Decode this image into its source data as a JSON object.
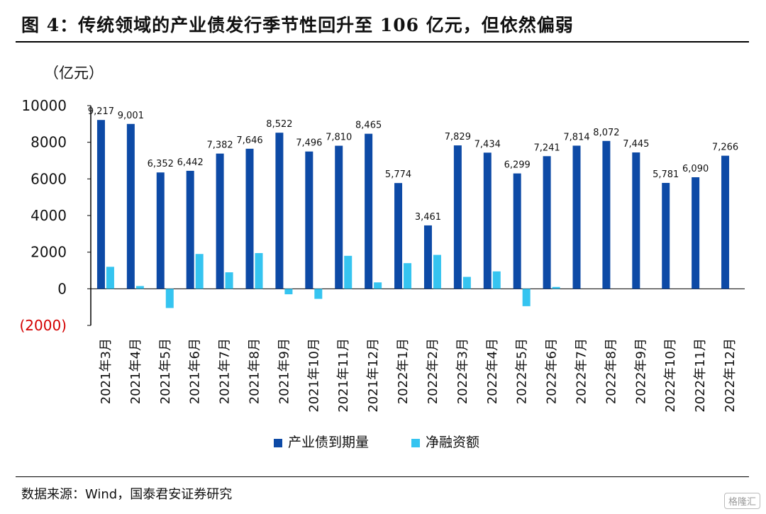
{
  "figure_title": "图 4：传统领域的产业债发行季节性回升至 106 亿元，但依然偏弱",
  "source": "数据来源：Wind，国泰君安证券研究",
  "watermark": "格隆汇",
  "colors": {
    "series1": "#0d4aa6",
    "series2": "#35c4f0",
    "negative_label": "#d40000"
  },
  "chart_data": {
    "type": "bar",
    "ylabel": "（亿元）",
    "ylim": [
      -2000,
      10000
    ],
    "yticks": [
      -2000,
      0,
      2000,
      4000,
      6000,
      8000,
      10000
    ],
    "ytick_labels": [
      "(2000)",
      "0",
      "2000",
      "4000",
      "6000",
      "8000",
      "10000"
    ],
    "categories": [
      "2021年3月",
      "2021年4月",
      "2021年5月",
      "2021年6月",
      "2021年7月",
      "2021年8月",
      "2021年9月",
      "2021年10月",
      "2021年11月",
      "2021年12月",
      "2022年1月",
      "2022年2月",
      "2022年3月",
      "2022年4月",
      "2022年5月",
      "2022年6月",
      "2022年7月",
      "2022年8月",
      "2022年9月",
      "2022年10月",
      "2022年11月",
      "2022年12月"
    ],
    "series": [
      {
        "name": "产业债到期量",
        "values": [
          9217,
          9001,
          6352,
          6442,
          7382,
          7646,
          8522,
          7496,
          7810,
          8465,
          5774,
          3461,
          7829,
          7434,
          6299,
          7241,
          7814,
          8072,
          7445,
          5781,
          6090,
          7266
        ],
        "labels": [
          "9,217",
          "9,001",
          "6,352",
          "6,442",
          "7,382",
          "7,646",
          "8,522",
          "7,496",
          "7,810",
          "8,465",
          "5,774",
          "3,461",
          "7,829",
          "7,434",
          "6,299",
          "7,241",
          "7,814",
          "8,072",
          "7,445",
          "5,781",
          "6,090",
          "7,266"
        ]
      },
      {
        "name": "净融资额",
        "values": [
          1200,
          150,
          -1050,
          1900,
          900,
          1950,
          -300,
          -550,
          1800,
          350,
          1400,
          1850,
          650,
          950,
          -950,
          100,
          0,
          0,
          0,
          0,
          0,
          0
        ]
      }
    ],
    "legend_position": "bottom",
    "grid": false
  }
}
